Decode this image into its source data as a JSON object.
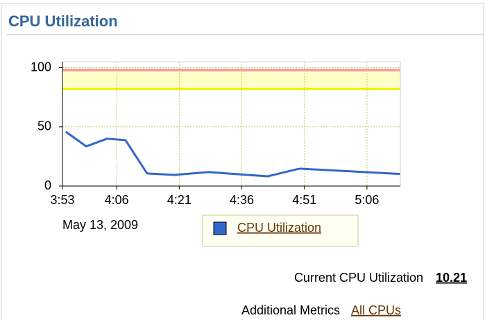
{
  "panel": {
    "title": "CPU Utilization",
    "current_label": "Current CPU Utilization",
    "current_value": "10.21",
    "additional_label": "Additional Metrics",
    "additional_link": "All CPUs"
  },
  "chart_data": {
    "type": "line",
    "date_label": "May 13, 2009",
    "x": [
      233.8,
      238.7,
      243.7,
      248.1,
      253.3,
      259.9,
      268,
      275.1,
      282.2,
      289.1,
      290,
      313.9
    ],
    "series": [
      {
        "name": "CPU Utilization",
        "color": "#3366cc",
        "values": [
          45.9,
          33.5,
          40,
          38.8,
          10.6,
          9.4,
          11.8,
          10,
          8.2,
          14.1,
          14.7,
          10.2
        ]
      }
    ],
    "xlim": [
      233,
      314
    ],
    "xticks": [
      {
        "value": 233,
        "label": "3:53"
      },
      {
        "value": 246,
        "label": "4:06"
      },
      {
        "value": 261,
        "label": "4:21"
      },
      {
        "value": 276,
        "label": "4:36"
      },
      {
        "value": 291,
        "label": "4:51"
      },
      {
        "value": 306,
        "label": "5:06"
      }
    ],
    "ylim": [
      0,
      105
    ],
    "yticks": [
      0,
      50,
      100
    ],
    "grid": true,
    "warning_threshold": 82,
    "critical_threshold": 98
  }
}
